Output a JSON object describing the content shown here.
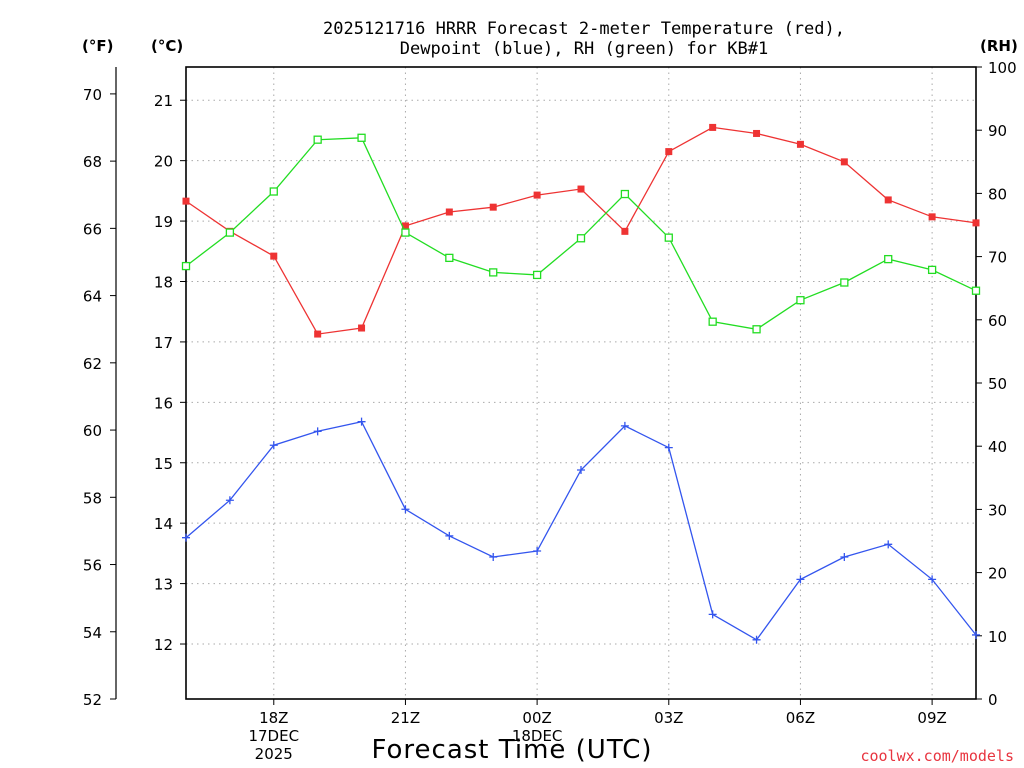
{
  "chart_data": {
    "type": "line",
    "title": [
      "2025121716 HRRR Forecast 2-meter Temperature (red),",
      "Dewpoint (blue), RH (green) for KB#1"
    ],
    "xlabel": "Forecast Time (UTC)",
    "credit": "coolwx.com/models",
    "units": {
      "fahrenheit": "(°F)",
      "celsius": "(°C)",
      "rh": "(RH)"
    },
    "x_hours": [
      16,
      17,
      18,
      19,
      20,
      21,
      22,
      23,
      24,
      25,
      26,
      27,
      28,
      29,
      30,
      31,
      32,
      33,
      34
    ],
    "x_range": [
      16,
      34
    ],
    "x_ticks": [
      {
        "hour": 18,
        "lines": [
          "18Z",
          "17DEC",
          "2025"
        ]
      },
      {
        "hour": 21,
        "lines": [
          "21Z"
        ]
      },
      {
        "hour": 24,
        "lines": [
          "00Z",
          "18DEC"
        ]
      },
      {
        "hour": 27,
        "lines": [
          "03Z"
        ]
      },
      {
        "hour": 30,
        "lines": [
          "06Z"
        ]
      },
      {
        "hour": 33,
        "lines": [
          "09Z"
        ]
      }
    ],
    "celsius_axis": {
      "range": [
        11.09,
        21.55
      ],
      "ticks": [
        "12",
        "13",
        "14",
        "15",
        "16",
        "17",
        "18",
        "19",
        "20",
        "21"
      ]
    },
    "fahrenheit_axis": {
      "range": [
        52,
        70.8
      ],
      "ticks": [
        "52",
        "54",
        "56",
        "58",
        "60",
        "62",
        "64",
        "66",
        "68",
        "70"
      ]
    },
    "rh_axis": {
      "range": [
        0,
        100
      ],
      "ticks": [
        "0",
        "10",
        "20",
        "30",
        "40",
        "50",
        "60",
        "70",
        "80",
        "90",
        "100"
      ]
    },
    "series": [
      {
        "name": "Temperature",
        "axis": "celsius",
        "color": "#ee3333",
        "marker": "filled-square",
        "values": [
          19.33,
          18.83,
          18.42,
          17.13,
          17.23,
          18.92,
          19.15,
          19.23,
          19.43,
          19.53,
          18.83,
          20.15,
          20.55,
          20.45,
          20.27,
          19.98,
          19.35,
          19.07,
          18.97
        ]
      },
      {
        "name": "Dewpoint",
        "axis": "celsius",
        "color": "#3355ee",
        "marker": "plus",
        "values": [
          13.76,
          14.38,
          15.29,
          15.52,
          15.68,
          14.23,
          13.79,
          13.44,
          13.54,
          14.88,
          15.61,
          15.25,
          12.49,
          12.07,
          13.07,
          13.44,
          13.65,
          13.07,
          12.15
        ]
      },
      {
        "name": "RH",
        "axis": "rh",
        "color": "#22dd22",
        "marker": "open-square",
        "values": [
          68.5,
          73.8,
          80.3,
          88.5,
          88.8,
          73.8,
          69.8,
          67.5,
          67.1,
          72.9,
          79.9,
          73.0,
          59.7,
          58.5,
          63.1,
          65.9,
          69.6,
          67.9,
          64.6
        ]
      }
    ]
  }
}
